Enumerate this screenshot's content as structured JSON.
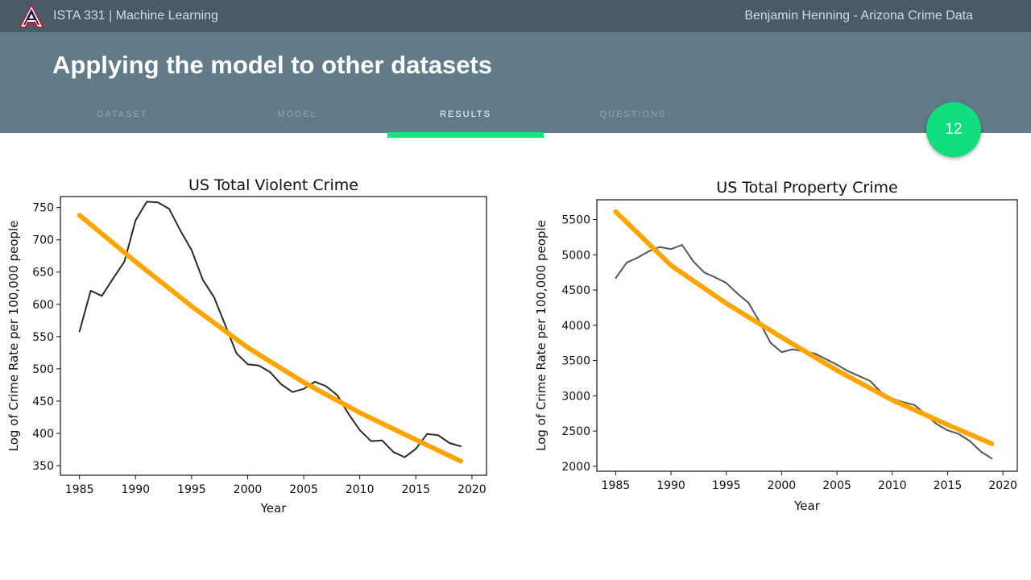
{
  "header": {
    "course": "ISTA 331 | Machine Learning",
    "author": "Benjamin Henning - Arizona Crime Data",
    "slide_title": "Applying the model to other datasets",
    "page_number": "12",
    "logo_icon": "arizona-a-logo-icon"
  },
  "nav": {
    "items": [
      "DATASET",
      "MODEL",
      "RESULTS",
      "QUESTIONS"
    ],
    "active": "RESULTS"
  },
  "colors": {
    "accent": "#0fdd7e",
    "fit": "#ffa500",
    "data": "#2b2b2b",
    "header": "#627b88",
    "topbar": "#4a5a66"
  },
  "chart_data": [
    {
      "type": "line",
      "title": "US Total Violent Crime",
      "xlabel": "Year",
      "ylabel": "Log of Crime Rate per 100,000 people",
      "xlim": [
        1983.3,
        2021.3
      ],
      "ylim": [
        335,
        767
      ],
      "xticks": [
        1985,
        1990,
        1995,
        2000,
        2005,
        2010,
        2015,
        2020
      ],
      "yticks": [
        350,
        400,
        450,
        500,
        550,
        600,
        650,
        700,
        750
      ],
      "series": [
        {
          "role": "data",
          "color": "#2b2b2b",
          "x": [
            1985,
            1986,
            1987,
            1988,
            1989,
            1990,
            1991,
            1992,
            1993,
            1994,
            1995,
            1996,
            1997,
            1998,
            1999,
            2000,
            2001,
            2002,
            2003,
            2004,
            2005,
            2006,
            2007,
            2008,
            2009,
            2010,
            2011,
            2012,
            2013,
            2014,
            2015,
            2016,
            2017,
            2018,
            2019
          ],
          "y": [
            558,
            621,
            613,
            640,
            666,
            730,
            759,
            758,
            748,
            714,
            684,
            638,
            611,
            568,
            524,
            507,
            505,
            495,
            476,
            464,
            469,
            480,
            473,
            459,
            430,
            405,
            388,
            389,
            371,
            363,
            376,
            399,
            397,
            385,
            380
          ]
        },
        {
          "role": "fit",
          "color": "#ffa500",
          "x": [
            1985,
            1990,
            1995,
            2000,
            2005,
            2010,
            2015,
            2019
          ],
          "y": [
            738,
            666,
            597,
            533,
            479,
            432,
            390,
            357
          ]
        }
      ]
    },
    {
      "type": "line",
      "title": "US Total Property Crime",
      "xlabel": "Year",
      "ylabel": "Log of Crime Rate per 100,000 people",
      "xlim": [
        1983.3,
        2021.3
      ],
      "ylim": [
        1930,
        5780
      ],
      "xticks": [
        1985,
        1990,
        1995,
        2000,
        2005,
        2010,
        2015,
        2020
      ],
      "yticks": [
        2000,
        2500,
        3000,
        3500,
        4000,
        4500,
        5000,
        5500
      ],
      "series": [
        {
          "role": "data",
          "color": "#555555",
          "x": [
            1985,
            1986,
            1987,
            1988,
            1989,
            1990,
            1991,
            1992,
            1993,
            1994,
            1995,
            1996,
            1997,
            1998,
            1999,
            2000,
            2001,
            2002,
            2003,
            2004,
            2005,
            2006,
            2007,
            2008,
            2009,
            2010,
            2011,
            2012,
            2013,
            2014,
            2015,
            2016,
            2017,
            2018,
            2019
          ],
          "y": [
            4670,
            4890,
            4960,
            5050,
            5110,
            5080,
            5140,
            4910,
            4750,
            4680,
            4600,
            4450,
            4320,
            4050,
            3750,
            3620,
            3660,
            3630,
            3600,
            3520,
            3440,
            3350,
            3280,
            3210,
            3050,
            2960,
            2910,
            2870,
            2740,
            2600,
            2510,
            2460,
            2360,
            2210,
            2110
          ]
        },
        {
          "role": "fit",
          "color": "#ffa500",
          "x": [
            1985,
            1990,
            1995,
            2000,
            2005,
            2010,
            2015,
            2019
          ],
          "y": [
            5610,
            4850,
            4310,
            3830,
            3360,
            2940,
            2590,
            2320
          ]
        }
      ]
    }
  ]
}
